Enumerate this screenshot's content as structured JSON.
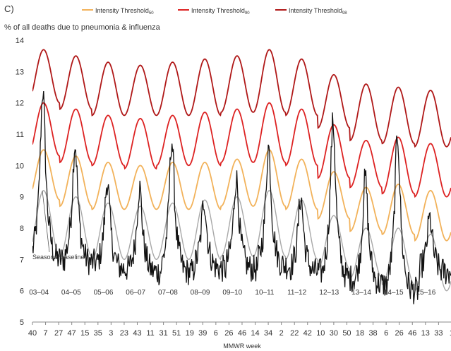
{
  "panel_label": "C)",
  "chart_data": {
    "type": "line",
    "ylabel": "% of all deaths due to pneumonia & influenza",
    "xlabel": "MMWR week",
    "ylim": [
      5,
      14
    ],
    "yticks": [
      5,
      6,
      7,
      8,
      9,
      10,
      11,
      12,
      13,
      14
    ],
    "grid": false,
    "legend_position": "top",
    "seasons": [
      "03–04",
      "04–05",
      "05–06",
      "06–07",
      "07–08",
      "08–09",
      "09–10",
      "10–11",
      "11–12",
      "12–13",
      "13–14",
      "14–15",
      "15–16"
    ],
    "x_tick_labels": [
      "40",
      "7",
      "27",
      "47",
      "15",
      "35",
      "3",
      "23",
      "43",
      "11",
      "31",
      "51",
      "19",
      "39",
      "6",
      "26",
      "46",
      "14",
      "34",
      "2",
      "22",
      "42",
      "10",
      "30",
      "50",
      "18",
      "38",
      "6",
      "26",
      "46",
      "13",
      "33",
      "1"
    ],
    "n_weeks": 640,
    "first_week_label": "40",
    "series": [
      {
        "name": "Intensity Threshold",
        "subscript": "50",
        "color": "#f2b25a",
        "peaks": [
          10.5,
          10.3,
          10.1,
          10.0,
          10.1,
          10.1,
          10.2,
          10.5,
          10.2,
          9.8,
          9.3,
          9.4,
          9.2
        ],
        "troughs": [
          8.9,
          8.7,
          8.6,
          8.6,
          8.6,
          8.6,
          8.7,
          8.7,
          8.6,
          8.3,
          7.9,
          7.8,
          7.6
        ]
      },
      {
        "name": "Intensity Threshold",
        "subscript": "90",
        "color": "#dd2222",
        "peaks": [
          12.0,
          11.8,
          11.6,
          11.5,
          11.6,
          11.7,
          11.8,
          12.0,
          11.8,
          11.3,
          10.8,
          10.9,
          10.7
        ],
        "troughs": [
          10.3,
          10.1,
          10.0,
          9.9,
          10.0,
          10.0,
          10.1,
          10.1,
          10.0,
          9.6,
          9.3,
          9.1,
          9.0
        ]
      },
      {
        "name": "Intensity Threshold",
        "subscript": "98",
        "color": "#b01818",
        "peaks": [
          13.7,
          13.5,
          13.3,
          13.2,
          13.3,
          13.4,
          13.5,
          13.7,
          13.4,
          12.9,
          12.6,
          12.5,
          12.4
        ],
        "troughs": [
          12.0,
          11.8,
          11.6,
          11.6,
          11.6,
          11.6,
          11.7,
          11.7,
          11.6,
          11.2,
          10.8,
          10.7,
          10.6
        ]
      }
    ],
    "baseline": {
      "label": "Seasonal baseline",
      "color": "#a8a8a8",
      "peaks": [
        9.2,
        9.0,
        8.8,
        8.7,
        8.8,
        8.9,
        9.0,
        9.2,
        8.9,
        8.4,
        8.0,
        8.0,
        7.8
      ],
      "troughs": [
        7.1,
        7.1,
        7.0,
        7.0,
        7.0,
        7.0,
        7.1,
        7.1,
        7.0,
        6.7,
        6.4,
        6.2,
        6.0
      ]
    },
    "observed": {
      "color": "#111111",
      "season_peaks": [
        12.4,
        10.7,
        9.5,
        9.3,
        10.8,
        8.9,
        9.6,
        10.6,
        9.0,
        11.4,
        9.6,
        11.0,
        8.3
      ],
      "season_troughs": [
        7.0,
        6.9,
        6.7,
        6.6,
        6.6,
        6.7,
        6.7,
        6.8,
        6.6,
        6.4,
        6.2,
        6.0,
        6.6
      ]
    }
  }
}
